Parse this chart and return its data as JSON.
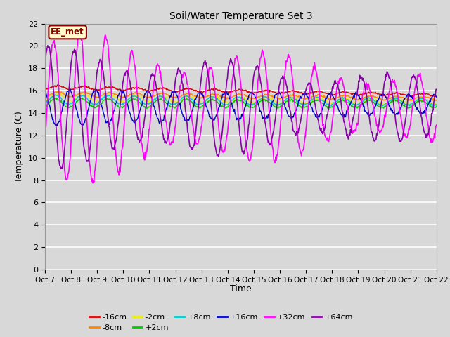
{
  "title": "Soil/Water Temperature Set 3",
  "xlabel": "Time",
  "ylabel": "Temperature (C)",
  "ylim": [
    0,
    22
  ],
  "yticks": [
    0,
    2,
    4,
    6,
    8,
    10,
    12,
    14,
    16,
    18,
    20,
    22
  ],
  "n_days": 15,
  "bg_color": "#d8d8d8",
  "annotation_text": "EE_met",
  "annotation_bg": "#ffffcc",
  "annotation_border": "#8b0000",
  "colors": {
    "-16cm": "#dd0000",
    "-8cm": "#ff8800",
    "-2cm": "#eeee00",
    "+2cm": "#00cc00",
    "+8cm": "#00cccc",
    "+16cm": "#0000cc",
    "+32cm": "#ff00ff",
    "+64cm": "#8800aa"
  },
  "xtick_labels": [
    "Oct 7",
    "Oct 8",
    "Oct 9",
    "Oct 10",
    "Oct 11",
    "Oct 12",
    "Oct 13",
    "Oct 14",
    "Oct 15",
    "Oct 16",
    "Oct 17",
    "Oct 18",
    "Oct 19",
    "Oct 20",
    "Oct 21",
    "Oct 22"
  ],
  "legend_order": [
    "-16cm",
    "-8cm",
    "-2cm",
    "+2cm",
    "+8cm",
    "+16cm",
    "+32cm",
    "+64cm"
  ]
}
